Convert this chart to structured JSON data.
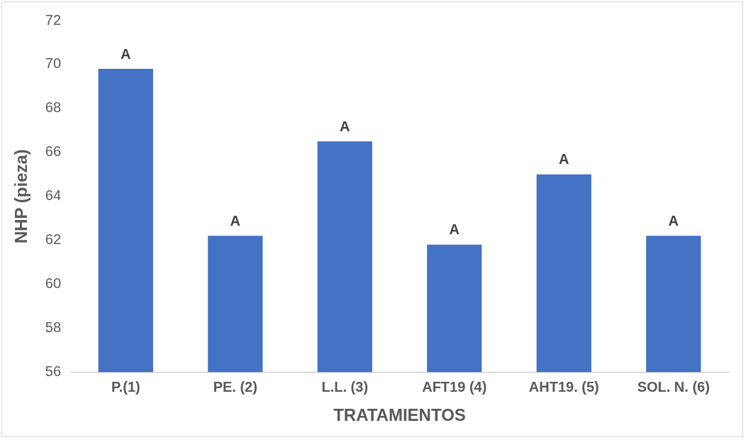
{
  "chart_data": {
    "type": "bar",
    "xlabel": "TRATAMIENTOS",
    "ylabel": "NHP (pieza)",
    "categories": [
      "P.(1)",
      "PE. (2)",
      "L.L. (3)",
      "AFT19 (4)",
      "AHT19. (5)",
      "SOL. N. (6)"
    ],
    "values": [
      69.8,
      62.2,
      66.5,
      61.8,
      65.0,
      62.2
    ],
    "color": "#4472c4",
    "ylim": [
      56,
      72
    ],
    "yticks": [
      56,
      58,
      60,
      62,
      64,
      66,
      68,
      70,
      72
    ],
    "grid": false,
    "legend": false,
    "annotations": [
      {
        "text": "A",
        "x": "P.(1)",
        "y": 69.8
      },
      {
        "text": "A",
        "x": "PE. (2)",
        "y": 62.2
      },
      {
        "text": "A",
        "x": "L.L. (3)",
        "y": 66.5
      },
      {
        "text": "A",
        "x": "AFT19 (4)",
        "y": 61.8
      },
      {
        "text": "A",
        "x": "AHT19. (5)",
        "y": 65.0
      },
      {
        "text": "A",
        "x": "SOL. N. (6)",
        "y": 62.2
      }
    ]
  }
}
